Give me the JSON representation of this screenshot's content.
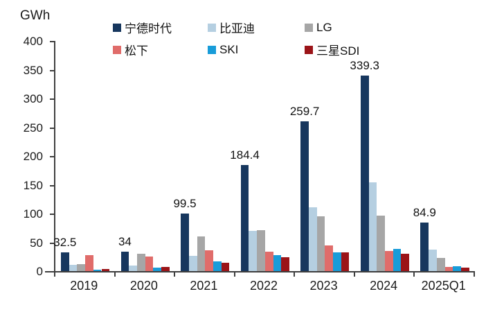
{
  "unit_label": "GWh",
  "chart_data": {
    "type": "bar",
    "title": "",
    "xlabel": "",
    "ylabel": "GWh",
    "ylim": [
      0,
      400
    ],
    "yticks": [
      0,
      50,
      100,
      150,
      200,
      250,
      300,
      350,
      400
    ],
    "grid": false,
    "legend_position": "top",
    "legend_columns": 3,
    "categories": [
      "2019",
      "2020",
      "2021",
      "2022",
      "2023",
      "2024",
      "2025Q1"
    ],
    "series": [
      {
        "name": "宁德时代",
        "color": "#17375E",
        "values": [
          32.5,
          34,
          99.5,
          184.4,
          259.7,
          339.3,
          84.9
        ],
        "labels": [
          "32.5",
          "34",
          "99.5",
          "184.4",
          "259.7",
          "339.3",
          "84.9"
        ]
      },
      {
        "name": "比亚迪",
        "color": "#B5CFE1",
        "values": [
          11,
          9.5,
          26,
          70,
          111,
          154,
          37
        ]
      },
      {
        "name": "LG",
        "color": "#A6A6A6",
        "values": [
          12.5,
          30,
          60,
          71,
          95,
          96,
          23
        ]
      },
      {
        "name": "松下",
        "color": "#E06C6A",
        "values": [
          28,
          25,
          36,
          34,
          44,
          35,
          7
        ]
      },
      {
        "name": "SKI",
        "color": "#189CD9",
        "values": [
          2,
          5.5,
          17,
          28,
          33,
          39,
          9
        ]
      },
      {
        "name": "三星SDI",
        "color": "#9B1418",
        "values": [
          4,
          7.5,
          14,
          24,
          32,
          30,
          6
        ]
      }
    ]
  },
  "colors": {
    "axis": "#3f3f3f",
    "text": "#1a1a1a",
    "background": "#ffffff"
  }
}
